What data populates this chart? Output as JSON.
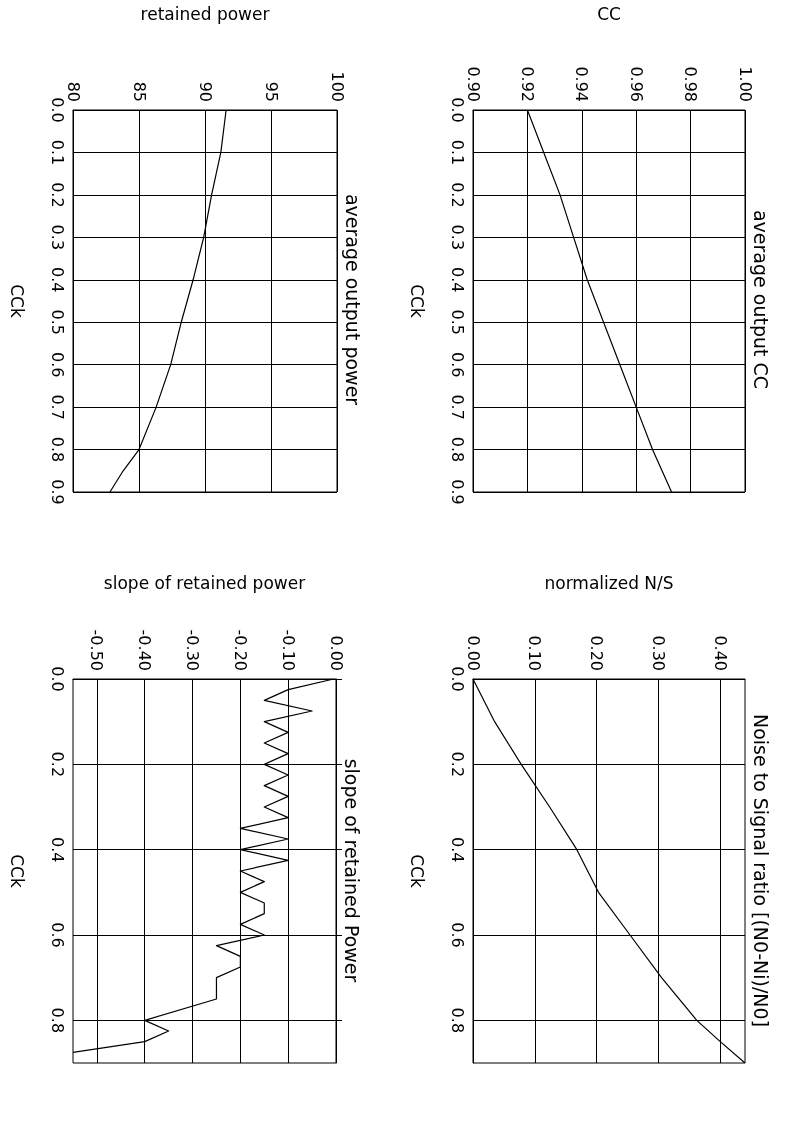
{
  "chart_data": [
    {
      "type": "line",
      "title": "average output CC",
      "xlabel": "CC",
      "ylabel": "CCk",
      "color": "#000000",
      "grid": true,
      "x": [
        0.92,
        0.926,
        0.932,
        0.937,
        0.942,
        0.948,
        0.954,
        0.96,
        0.966,
        0.973
      ],
      "values": [
        0,
        0.1,
        0.2,
        0.3,
        0.4,
        0.5,
        0.6,
        0.7,
        0.8,
        0.9
      ],
      "xlim": [
        0.9,
        1.0
      ],
      "ylim": [
        0.9,
        0
      ],
      "xticks": [
        {
          "value": 0.9,
          "label": "0.90"
        },
        {
          "value": 0.92,
          "label": "0.92"
        },
        {
          "value": 0.94,
          "label": "0.94"
        },
        {
          "value": 0.96,
          "label": "0.96"
        },
        {
          "value": 0.98,
          "label": "0.98"
        },
        {
          "value": 1.0,
          "label": "1.00"
        }
      ],
      "yticks": [
        {
          "value": 0,
          "label": "0.0"
        },
        {
          "value": 0.1,
          "label": "0.1"
        },
        {
          "value": 0.2,
          "label": "0.2"
        },
        {
          "value": 0.3,
          "label": "0.3"
        },
        {
          "value": 0.4,
          "label": "0.4"
        },
        {
          "value": 0.5,
          "label": "0.5"
        },
        {
          "value": 0.6,
          "label": "0.6"
        },
        {
          "value": 0.7,
          "label": "0.7"
        },
        {
          "value": 0.8,
          "label": "0.8"
        },
        {
          "value": 0.9,
          "label": "0.9"
        }
      ]
    },
    {
      "type": "line",
      "title": "Noise to Signal ratio [(N0-Ni)/N0]",
      "xlabel": "normalized N/S",
      "ylabel": "CCk",
      "color": "#000000",
      "grid": true,
      "x": [
        0,
        0.035,
        0.078,
        0.124,
        0.168,
        0.203,
        0.254,
        0.305,
        0.362,
        0.4,
        0.44
      ],
      "values": [
        0,
        0.1,
        0.2,
        0.3,
        0.4,
        0.5,
        0.6,
        0.7,
        0.8,
        0.85,
        0.9
      ],
      "xlim": [
        0,
        0.44
      ],
      "ylim": [
        0.9,
        0
      ],
      "xticks": [
        {
          "value": 0,
          "label": "0.00"
        },
        {
          "value": 0.1,
          "label": "0.10"
        },
        {
          "value": 0.2,
          "label": "0.20"
        },
        {
          "value": 0.3,
          "label": "0.30"
        },
        {
          "value": 0.4,
          "label": "0.40"
        }
      ],
      "yticks": [
        {
          "value": 0,
          "label": "0.0"
        },
        {
          "value": 0.2,
          "label": "0.2"
        },
        {
          "value": 0.4,
          "label": "0.4"
        },
        {
          "value": 0.6,
          "label": "0.6"
        },
        {
          "value": 0.8,
          "label": "0.8"
        }
      ]
    },
    {
      "type": "line",
      "title": "average output power",
      "xlabel": "retained power",
      "ylabel": "CCk",
      "color": "#000000",
      "grid": true,
      "x": [
        91.6,
        91.2,
        90.5,
        89.9,
        89.1,
        88.2,
        87.4,
        86.3,
        85.0,
        83.8,
        82.8
      ],
      "values": [
        0,
        0.1,
        0.2,
        0.3,
        0.4,
        0.5,
        0.6,
        0.7,
        0.8,
        0.85,
        0.9
      ],
      "xlim": [
        80,
        100
      ],
      "ylim": [
        0.9,
        0
      ],
      "xticks": [
        80,
        85,
        90,
        95,
        100
      ],
      "yticks": [
        {
          "value": 0,
          "label": "0.0"
        },
        {
          "value": 0.1,
          "label": "0.1"
        },
        {
          "value": 0.2,
          "label": "0.2"
        },
        {
          "value": 0.3,
          "label": "0.3"
        },
        {
          "value": 0.4,
          "label": "0.4"
        },
        {
          "value": 0.5,
          "label": "0.5"
        },
        {
          "value": 0.6,
          "label": "0.6"
        },
        {
          "value": 0.7,
          "label": "0.7"
        },
        {
          "value": 0.8,
          "label": "0.8"
        },
        {
          "value": 0.9,
          "label": "0.9"
        }
      ]
    },
    {
      "type": "line",
      "title": "slope of retained Power",
      "xlabel": "slope of retained power",
      "ylabel": "CCk",
      "color": "#000000",
      "grid": true,
      "x": [
        -0.005,
        -0.1,
        -0.15,
        -0.05,
        -0.15,
        -0.1,
        -0.15,
        -0.1,
        -0.15,
        -0.1,
        -0.15,
        -0.1,
        -0.15,
        -0.1,
        -0.2,
        -0.1,
        -0.2,
        -0.1,
        -0.2,
        -0.15,
        -0.2,
        -0.15,
        -0.15,
        -0.2,
        -0.15,
        -0.25,
        -0.2,
        -0.2,
        -0.25,
        -0.25,
        -0.4,
        -0.35,
        -0.4,
        -0.55
      ],
      "values": [
        0,
        0.025,
        0.05,
        0.075,
        0.1,
        0.125,
        0.15,
        0.175,
        0.2,
        0.225,
        0.25,
        0.275,
        0.3,
        0.325,
        0.35,
        0.375,
        0.4,
        0.425,
        0.45,
        0.475,
        0.5,
        0.525,
        0.55,
        0.575,
        0.6,
        0.625,
        0.65,
        0.675,
        0.7,
        0.75,
        0.8,
        0.825,
        0.85,
        0.875
      ],
      "xlim": [
        -0.55,
        0
      ],
      "ylim": [
        0.9,
        0
      ],
      "xticks": [
        {
          "value": -0.5,
          "label": "-0.50"
        },
        {
          "value": -0.4,
          "label": "-0.40"
        },
        {
          "value": -0.3,
          "label": "-0.30"
        },
        {
          "value": -0.2,
          "label": "-0.20"
        },
        {
          "value": -0.1,
          "label": "-0.10"
        },
        {
          "value": 0,
          "label": "0.00"
        }
      ],
      "yticks": [
        {
          "value": 0,
          "label": "0.0"
        },
        {
          "value": 0.2,
          "label": "0.2"
        },
        {
          "value": 0.4,
          "label": "0.4"
        },
        {
          "value": 0.6,
          "label": "0.6"
        },
        {
          "value": 0.8,
          "label": "0.8"
        }
      ]
    }
  ]
}
